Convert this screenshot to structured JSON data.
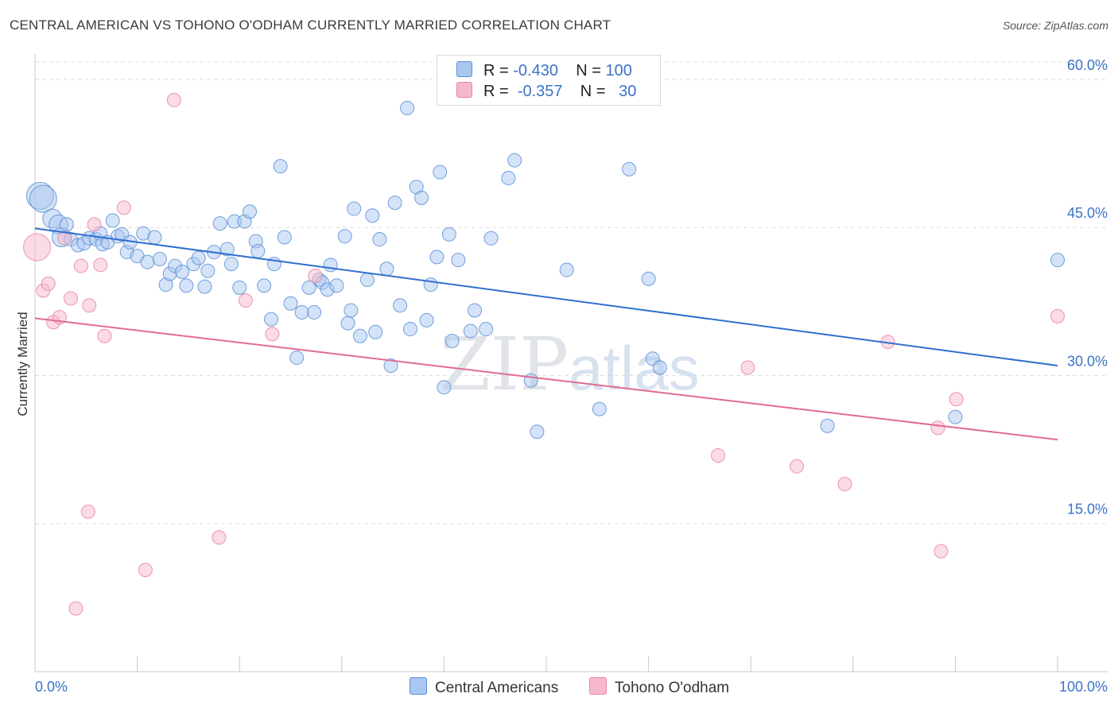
{
  "header": {
    "title": "CENTRAL AMERICAN VS TOHONO O'ODHAM CURRENTLY MARRIED CORRELATION CHART",
    "source": "Source: ZipAtlas.com"
  },
  "legend_top": [
    {
      "r_label": "R =",
      "r_value": "-0.430",
      "n_label": "N =",
      "n_value": "100"
    },
    {
      "r_label": "R =",
      "r_value": "-0.357",
      "n_label": "N =",
      "n_value": "30"
    }
  ],
  "watermark": {
    "zip": "ZIP",
    "atlas": "atlas"
  },
  "colors": {
    "blue_fill": "#a9c8f0",
    "blue_stroke": "#5b8fd6",
    "blue_line": "#2f6fcf",
    "pink_fill": "#f7b8cb",
    "pink_stroke": "#e884a6",
    "pink_line": "#e06b95",
    "tick_text": "#3a73c8",
    "grid": "#dcdcdc"
  },
  "chart_data": {
    "type": "scatter",
    "title": "CENTRAL AMERICAN VS TOHONO O'ODHAM CURRENTLY MARRIED CORRELATION CHART",
    "xlabel": "",
    "ylabel": "Currently Married",
    "xlim": [
      0,
      100
    ],
    "ylim": [
      0,
      62
    ],
    "x_tick_labels": [
      "0.0%",
      "100.0%"
    ],
    "y_ticks": [
      15,
      30,
      45,
      60
    ],
    "y_tick_labels": [
      "15.0%",
      "30.0%",
      "45.0%",
      "60.0%"
    ],
    "grid": true,
    "legend_position": "bottom",
    "series": [
      {
        "name": "Central Americans",
        "color": "#a9c8f0",
        "r": -0.43,
        "n": 100,
        "trend": {
          "x": [
            0,
            100
          ],
          "y": [
            44.9,
            31.0
          ]
        },
        "points": [
          [
            0.5,
            48.2,
            "L"
          ],
          [
            0.8,
            47.9,
            "L"
          ],
          [
            1.7,
            45.9,
            "M"
          ],
          [
            2.3,
            45.3,
            "M"
          ],
          [
            2.6,
            44.0,
            "M"
          ],
          [
            3.1,
            45.3
          ],
          [
            3.5,
            43.8
          ],
          [
            4.2,
            43.2
          ],
          [
            4.8,
            43.4
          ],
          [
            5.3,
            43.9
          ],
          [
            6.0,
            43.8
          ],
          [
            6.4,
            44.4
          ],
          [
            6.6,
            43.3
          ],
          [
            7.1,
            43.5
          ],
          [
            7.6,
            45.7
          ],
          [
            8.1,
            44.1
          ],
          [
            8.5,
            44.3
          ],
          [
            9.0,
            42.5
          ],
          [
            9.3,
            43.5
          ],
          [
            10.0,
            42.1
          ],
          [
            10.6,
            44.4
          ],
          [
            11.0,
            41.5
          ],
          [
            11.7,
            44.0
          ],
          [
            12.2,
            41.8
          ],
          [
            12.8,
            39.2
          ],
          [
            13.2,
            40.3
          ],
          [
            13.7,
            41.1
          ],
          [
            14.4,
            40.5
          ],
          [
            14.8,
            39.1
          ],
          [
            15.5,
            41.3
          ],
          [
            16.0,
            41.9
          ],
          [
            16.6,
            39.0
          ],
          [
            16.9,
            40.6
          ],
          [
            17.5,
            42.5
          ],
          [
            18.1,
            45.4
          ],
          [
            18.8,
            42.8
          ],
          [
            19.2,
            41.3
          ],
          [
            19.5,
            45.6
          ],
          [
            20.0,
            38.9
          ],
          [
            20.5,
            45.6
          ],
          [
            21.0,
            46.6
          ],
          [
            21.6,
            43.6
          ],
          [
            21.8,
            42.6
          ],
          [
            22.4,
            39.1
          ],
          [
            23.1,
            35.7
          ],
          [
            23.4,
            41.3
          ],
          [
            24.0,
            51.2
          ],
          [
            24.4,
            44.0
          ],
          [
            25.0,
            37.3
          ],
          [
            25.6,
            31.8
          ],
          [
            26.1,
            36.4
          ],
          [
            26.8,
            38.9
          ],
          [
            27.3,
            36.4
          ],
          [
            27.8,
            39.7
          ],
          [
            28.1,
            39.4
          ],
          [
            28.6,
            38.7
          ],
          [
            28.9,
            41.2
          ],
          [
            29.5,
            39.1
          ],
          [
            30.3,
            44.1
          ],
          [
            30.6,
            35.3
          ],
          [
            30.9,
            36.6
          ],
          [
            31.2,
            46.9
          ],
          [
            31.8,
            34.0
          ],
          [
            32.5,
            39.7
          ],
          [
            33.0,
            46.2
          ],
          [
            33.3,
            34.4
          ],
          [
            33.7,
            43.8
          ],
          [
            34.4,
            40.8
          ],
          [
            34.8,
            31.0
          ],
          [
            35.2,
            47.5
          ],
          [
            35.7,
            37.1
          ],
          [
            36.4,
            57.1
          ],
          [
            36.7,
            34.7
          ],
          [
            37.3,
            49.1
          ],
          [
            37.8,
            48.0
          ],
          [
            38.3,
            35.6
          ],
          [
            38.7,
            39.2
          ],
          [
            39.3,
            42.0
          ],
          [
            39.6,
            50.6
          ],
          [
            40.0,
            28.8
          ],
          [
            40.5,
            44.3
          ],
          [
            40.8,
            33.5
          ],
          [
            41.4,
            41.7
          ],
          [
            42.6,
            34.5
          ],
          [
            43.0,
            36.6
          ],
          [
            44.1,
            34.7
          ],
          [
            46.3,
            50.0
          ],
          [
            46.9,
            51.8
          ],
          [
            48.5,
            29.5
          ],
          [
            49.1,
            24.3
          ],
          [
            52.0,
            40.7
          ],
          [
            55.2,
            26.6
          ],
          [
            58.1,
            50.9
          ],
          [
            60.0,
            39.8
          ],
          [
            60.4,
            31.7
          ],
          [
            61.1,
            30.8
          ],
          [
            77.5,
            24.9
          ],
          [
            90.0,
            25.8
          ],
          [
            100.0,
            41.7
          ],
          [
            44.6,
            43.9
          ]
        ]
      },
      {
        "name": "Tohono O'odham",
        "color": "#f7b8cb",
        "r": -0.357,
        "n": 30,
        "trend": {
          "x": [
            0,
            100
          ],
          "y": [
            35.8,
            23.5
          ]
        },
        "points": [
          [
            0.2,
            43.0,
            "L"
          ],
          [
            0.8,
            38.6
          ],
          [
            1.3,
            39.3
          ],
          [
            1.8,
            35.4
          ],
          [
            2.4,
            35.9
          ],
          [
            2.9,
            43.9
          ],
          [
            3.5,
            37.8
          ],
          [
            4.0,
            6.4
          ],
          [
            4.5,
            41.1
          ],
          [
            5.2,
            16.2
          ],
          [
            5.3,
            37.1
          ],
          [
            5.8,
            45.3
          ],
          [
            6.4,
            41.2
          ],
          [
            6.8,
            34.0
          ],
          [
            8.7,
            47.0
          ],
          [
            10.8,
            10.3
          ],
          [
            13.6,
            57.9
          ],
          [
            18.0,
            13.6
          ],
          [
            20.6,
            37.6
          ],
          [
            23.2,
            34.2
          ],
          [
            27.4,
            40.1
          ],
          [
            66.8,
            21.9
          ],
          [
            69.7,
            30.8
          ],
          [
            74.5,
            20.8
          ],
          [
            79.2,
            19.0
          ],
          [
            83.4,
            33.4
          ],
          [
            88.6,
            12.2
          ],
          [
            88.3,
            24.7
          ],
          [
            90.1,
            27.6
          ],
          [
            100.0,
            36.0
          ]
        ]
      }
    ]
  }
}
